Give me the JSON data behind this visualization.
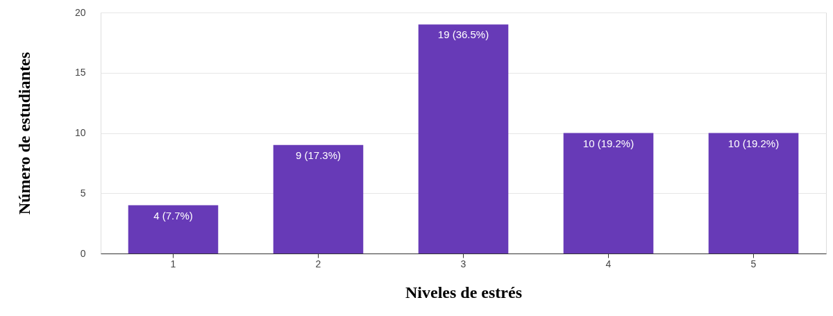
{
  "chart_data": {
    "type": "bar",
    "xlabel": "Niveles de estrés",
    "ylabel": "Número de estudiantes",
    "categories": [
      "1",
      "2",
      "3",
      "4",
      "5"
    ],
    "values": [
      4,
      9,
      19,
      10,
      10
    ],
    "value_labels": [
      "4 (7.7%)",
      "9 (17.3%)",
      "19 (36.5%)",
      "10 (19.2%)",
      "10 (19.2%)"
    ],
    "color": "#673ab7",
    "ylim": [
      0,
      20
    ],
    "yticks": [
      0,
      5,
      10,
      15,
      20
    ],
    "grid": "y"
  }
}
